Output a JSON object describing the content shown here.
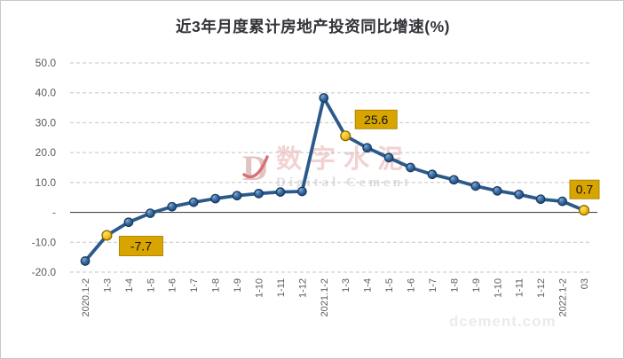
{
  "chart_data": {
    "type": "line",
    "title": "近3年月度累计房地产投资同比增速(%)",
    "categories": [
      "2020.1-2",
      "1-3",
      "1-4",
      "1-5",
      "1-6",
      "1-7",
      "1-8",
      "1-9",
      "1-10",
      "1-11",
      "1-12",
      "2021.1-2",
      "1-3",
      "1-4",
      "1-5",
      "1-6",
      "1-7",
      "1-8",
      "1-9",
      "1-10",
      "1-11",
      "1-12",
      "2022.1-2",
      "03"
    ],
    "series": [
      {
        "name": "累计房地产投资同比增速",
        "values": [
          -16.3,
          -7.7,
          -3.3,
          -0.3,
          1.9,
          3.4,
          4.6,
          5.6,
          6.3,
          6.8,
          7.0,
          38.3,
          25.6,
          21.6,
          18.3,
          15.0,
          12.7,
          10.9,
          8.8,
          7.2,
          6.0,
          4.4,
          3.7,
          0.7
        ]
      }
    ],
    "ylim": [
      -20,
      50
    ],
    "yticks": [
      {
        "v": 50,
        "label": "50.0"
      },
      {
        "v": 40,
        "label": "40.0"
      },
      {
        "v": 30,
        "label": "30.0"
      },
      {
        "v": 20,
        "label": "20.0"
      },
      {
        "v": 10,
        "label": "10.0"
      },
      {
        "v": 0,
        "label": "-"
      },
      {
        "v": -10,
        "label": "-10.0"
      },
      {
        "v": -20,
        "label": "-20.0"
      }
    ],
    "grid": "horizontal-dashed",
    "legend": "none",
    "highlights": [
      {
        "index": 1,
        "label": "-7.7"
      },
      {
        "index": 12,
        "label": "25.6"
      },
      {
        "index": 23,
        "label": "0.7"
      }
    ],
    "colors": {
      "line": "#2b5a8a",
      "marker_stroke": "#173c62",
      "highlight_marker": "#f5bc00",
      "callout_bg": "#d8a500",
      "callout_border": "#b38600",
      "callout_text": "#101014",
      "grid": "#c4c4c4",
      "zero_line": "#4a4a4a",
      "axis_text": "#5a5a64",
      "title_text": "#32323a"
    }
  },
  "watermark": {
    "logo_letter": "D",
    "cn": "数字水泥",
    "en": "Digital Cement",
    "url": "dcement.com"
  }
}
